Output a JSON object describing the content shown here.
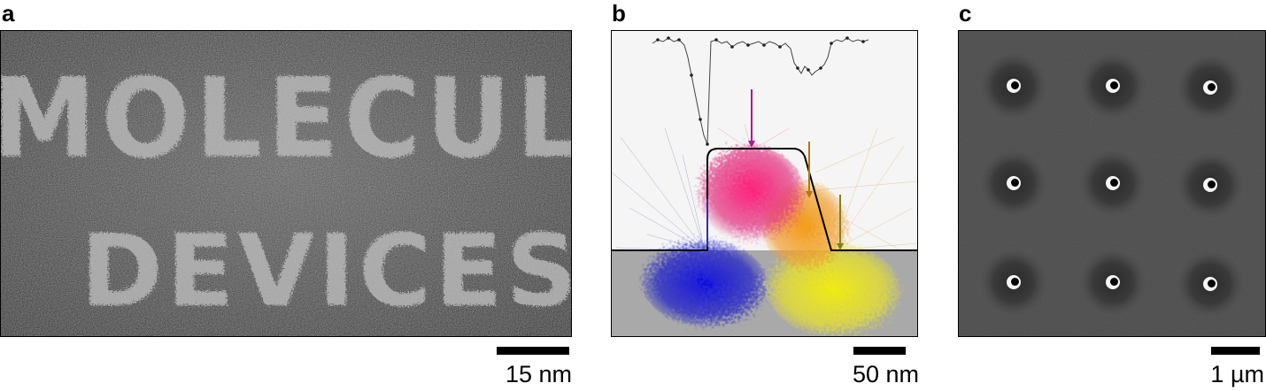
{
  "panels": {
    "a": {
      "label": "a",
      "scale_text": "15 nm",
      "image_text_line1": "MOLECULAR",
      "image_text_line2": "DEVICES"
    },
    "b": {
      "label": "b",
      "scale_text": "50 nm",
      "colors": {
        "magenta": "#e8187a",
        "orange": "#f0a020",
        "yellow": "#e8e020",
        "blue": "#1a1ad0",
        "substrate": "#a8a8a8"
      }
    },
    "c": {
      "label": "c",
      "scale_text": "1 µm",
      "grid": "3x3 holes"
    }
  }
}
